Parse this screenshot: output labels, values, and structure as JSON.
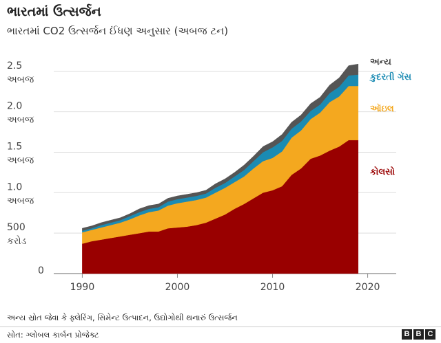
{
  "title": "ભારતમાં ઉત્સર્જન",
  "subtitle": "ભારતમાં CO2 ઉત્સર્જન ઈંધણ અનુસાર (અબજ ટન)",
  "footnote": "અન્ય સ્રોત જેવા કે ફ્લેરિંગ, સિમેન્ટ ઉત્પાદન, ઉદ્યોગોથી થનારું ઉત્સર્જન",
  "source": "સોત: ગ્લોબલ કાર્બન પ્રોજેક્ટ",
  "logo": [
    "B",
    "B",
    "C"
  ],
  "chart_data": {
    "type": "area",
    "stacked": true,
    "xlim": [
      1990,
      2019
    ],
    "ylim": [
      0,
      2.6
    ],
    "grid": true,
    "x_ticks": [
      {
        "value": 1990,
        "label": "1990"
      },
      {
        "value": 2000,
        "label": "2000"
      },
      {
        "value": 2010,
        "label": "2010"
      },
      {
        "value": 2020,
        "label": "2020"
      }
    ],
    "y_ticks": [
      {
        "value": 0,
        "lines": [
          "0"
        ]
      },
      {
        "value": 0.5,
        "lines": [
          "500",
          "કરોડ"
        ]
      },
      {
        "value": 1.0,
        "lines": [
          "1.0",
          "અબજ"
        ]
      },
      {
        "value": 1.5,
        "lines": [
          "1.5",
          "અબજ"
        ]
      },
      {
        "value": 2.0,
        "lines": [
          "2.0",
          "અબજ"
        ]
      },
      {
        "value": 2.5,
        "lines": [
          "2.5",
          "અબજ"
        ]
      }
    ],
    "x": [
      1990,
      1991,
      1992,
      1993,
      1994,
      1995,
      1996,
      1997,
      1998,
      1999,
      2000,
      2001,
      2002,
      2003,
      2004,
      2005,
      2006,
      2007,
      2008,
      2009,
      2010,
      2011,
      2012,
      2013,
      2014,
      2015,
      2016,
      2017,
      2018,
      2019
    ],
    "series": [
      {
        "name": "કોલસો",
        "color": "#990000",
        "values": [
          0.37,
          0.4,
          0.42,
          0.44,
          0.46,
          0.48,
          0.5,
          0.52,
          0.52,
          0.56,
          0.57,
          0.58,
          0.6,
          0.63,
          0.68,
          0.73,
          0.8,
          0.86,
          0.93,
          1.0,
          1.03,
          1.08,
          1.22,
          1.3,
          1.42,
          1.46,
          1.52,
          1.57,
          1.65,
          1.65
        ]
      },
      {
        "name": "ઑઇલ",
        "color": "#f4a81f",
        "values": [
          0.14,
          0.14,
          0.15,
          0.16,
          0.17,
          0.19,
          0.22,
          0.24,
          0.26,
          0.28,
          0.3,
          0.31,
          0.31,
          0.31,
          0.32,
          0.33,
          0.33,
          0.34,
          0.37,
          0.39,
          0.4,
          0.43,
          0.46,
          0.47,
          0.49,
          0.53,
          0.6,
          0.62,
          0.67,
          0.67
        ]
      },
      {
        "name": "કુદરતી ગૅસ",
        "color": "#1b8bb3",
        "values": [
          0.02,
          0.02,
          0.03,
          0.03,
          0.03,
          0.04,
          0.04,
          0.04,
          0.04,
          0.05,
          0.05,
          0.05,
          0.05,
          0.05,
          0.06,
          0.06,
          0.07,
          0.08,
          0.09,
          0.11,
          0.13,
          0.13,
          0.11,
          0.11,
          0.1,
          0.1,
          0.11,
          0.12,
          0.13,
          0.14
        ]
      },
      {
        "name": "અન્ય",
        "color": "#555555",
        "values": [
          0.03,
          0.03,
          0.03,
          0.03,
          0.03,
          0.03,
          0.04,
          0.04,
          0.04,
          0.04,
          0.04,
          0.04,
          0.04,
          0.04,
          0.05,
          0.05,
          0.05,
          0.06,
          0.06,
          0.07,
          0.07,
          0.08,
          0.08,
          0.08,
          0.09,
          0.09,
          0.1,
          0.11,
          0.12,
          0.13
        ]
      }
    ]
  }
}
